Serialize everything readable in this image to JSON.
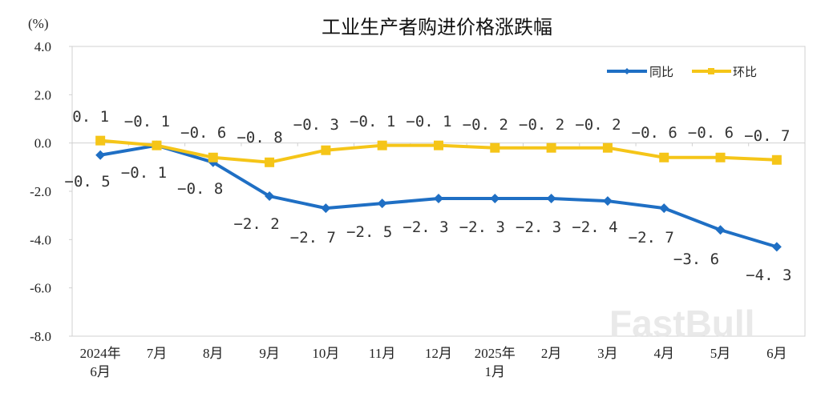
{
  "chart_data": {
    "type": "line",
    "title": "工业生产者购进价格涨跌幅",
    "ylabel": "(%)",
    "xlabel": "",
    "ylim": [
      -8.0,
      4.0
    ],
    "yticks": [
      "4.0",
      "2.0",
      "0.0",
      "-2.0",
      "-4.0",
      "-6.0",
      "-8.0"
    ],
    "ytick_values": [
      4,
      2,
      0,
      -2,
      -4,
      -6,
      -8
    ],
    "grid": false,
    "legend_position": "top-right",
    "categories": [
      "2024年\n6月",
      "7月",
      "8月",
      "9月",
      "10月",
      "11月",
      "12月",
      "2025年\n1月",
      "2月",
      "3月",
      "4月",
      "5月",
      "6月"
    ],
    "category_lines": [
      [
        "2024年",
        "6月"
      ],
      [
        "7月"
      ],
      [
        "8月"
      ],
      [
        "9月"
      ],
      [
        "10月"
      ],
      [
        "11月"
      ],
      [
        "12月"
      ],
      [
        "2025年",
        "1月"
      ],
      [
        "2月"
      ],
      [
        "3月"
      ],
      [
        "4月"
      ],
      [
        "5月"
      ],
      [
        "6月"
      ]
    ],
    "series": [
      {
        "name": "同比",
        "color": "#1f6fc4",
        "marker": "diamond",
        "values": [
          -0.5,
          -0.1,
          -0.8,
          -2.2,
          -2.7,
          -2.5,
          -2.3,
          -2.3,
          -2.3,
          -2.4,
          -2.7,
          -3.6,
          -4.3
        ],
        "labels": [
          "-0.5",
          "-0.1",
          "-0.8",
          "-2.2",
          "-2.7",
          "-2.5",
          "-2.3",
          "-2.3",
          "-2.3",
          "-2.4",
          "-2.7",
          "-3.6",
          "-4.3"
        ]
      },
      {
        "name": "环比",
        "color": "#f5c518",
        "marker": "square",
        "values": [
          0.1,
          -0.1,
          -0.6,
          -0.8,
          -0.3,
          -0.1,
          -0.1,
          -0.2,
          -0.2,
          -0.2,
          -0.6,
          -0.6,
          -0.7
        ],
        "labels": [
          "0.1",
          "-0.1",
          "-0.6",
          "-0.8",
          "-0.3",
          "-0.1",
          "-0.1",
          "-0.2",
          "-0.2",
          "-0.2",
          "-0.6",
          "-0.6",
          "-0.7"
        ]
      }
    ]
  },
  "watermark": "FastBull"
}
